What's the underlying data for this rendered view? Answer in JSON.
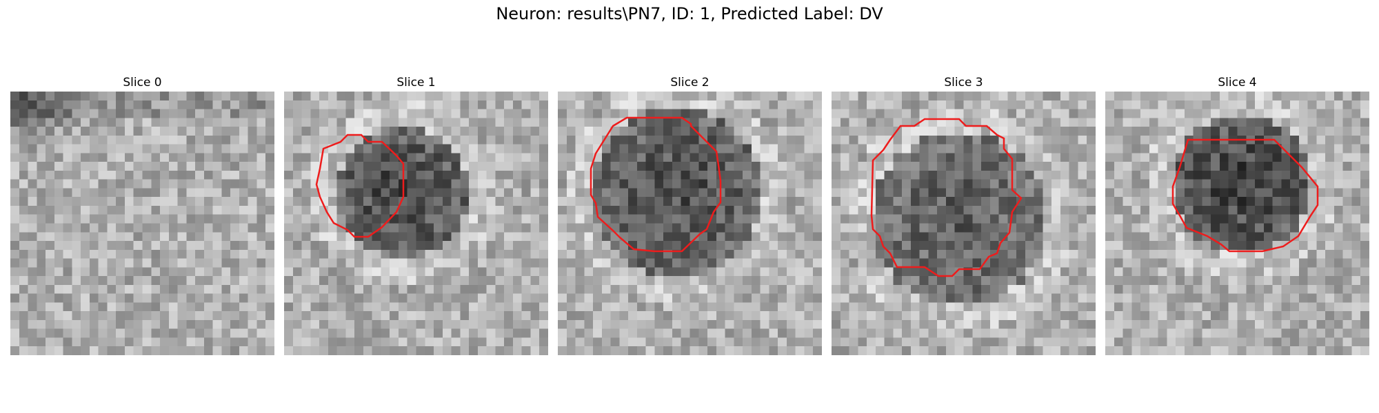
{
  "figure": {
    "title": "Neuron: results\\PN7, ID: 1, Predicted Label: DV"
  },
  "slices": [
    {
      "label": "Slice 0"
    },
    {
      "label": "Slice 1"
    },
    {
      "label": "Slice 2"
    },
    {
      "label": "Slice 3"
    },
    {
      "label": "Slice 4"
    }
  ],
  "colors": {
    "contour": "#ee1c1c",
    "background": "#ffffff"
  }
}
